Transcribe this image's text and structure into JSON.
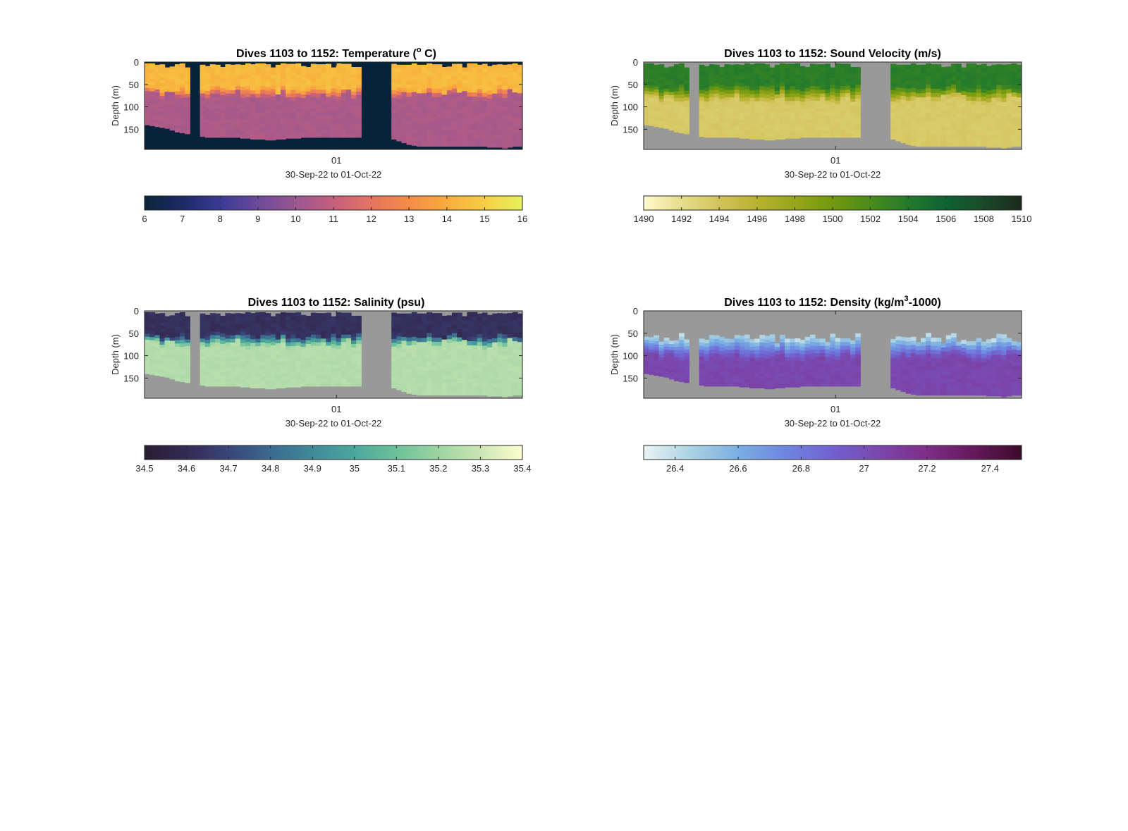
{
  "chart_data": [
    {
      "type": "heatmap",
      "title": "Dives 1103 to 1152: Temperature (",
      "title_sup": "o",
      "title_end": " C)",
      "ylabel": "Depth (m)",
      "ylim": [
        0,
        195
      ],
      "yticks": [
        "0",
        "50",
        "100",
        "150"
      ],
      "ytick_values": [
        0,
        50,
        100,
        150
      ],
      "xtick": "01",
      "xlabel": "30-Sep-22 to 01-Oct-22",
      "nan_color": "#06233a",
      "colorbar": {
        "ticks": [
          "6",
          "7",
          "8",
          "9",
          "10",
          "11",
          "12",
          "13",
          "14",
          "15",
          "16"
        ],
        "range": [
          6,
          16
        ],
        "colors": [
          "#0b2539",
          "#1c2a66",
          "#3b3b95",
          "#6b4a9a",
          "#9a5790",
          "#c4607d",
          "#e57361",
          "#f48c48",
          "#f9ab3d",
          "#f6ce45",
          "#e6f15b"
        ]
      },
      "fields": {
        "surface_value": 14.4,
        "surface_end": 60,
        "deep_value": 10.4,
        "deep_start": 75,
        "bottom": [
          140,
          142,
          144,
          146,
          148,
          152,
          156,
          158,
          160,
          162,
          164,
          166,
          168,
          168,
          168,
          168,
          168,
          168,
          168,
          170,
          170,
          172,
          172,
          172,
          174,
          174,
          172,
          172,
          170,
          170,
          170,
          168,
          168,
          168,
          168,
          168,
          168,
          168,
          168,
          168,
          168,
          168,
          168,
          168,
          168,
          168,
          168,
          168,
          170,
          172,
          176,
          180,
          184,
          186,
          188,
          188,
          188,
          188,
          188,
          188,
          188,
          188,
          188,
          188,
          188,
          188,
          188,
          188,
          190,
          190,
          190,
          192,
          190,
          188,
          188
        ],
        "gaps": [
          [
            9,
            10
          ],
          [
            43,
            48
          ]
        ]
      },
      "values_range": [
        7.2,
        15.1
      ]
    },
    {
      "type": "heatmap",
      "title": "Dives 1103 to 1152: Sound Velocity (m/s)",
      "ylabel": "Depth (m)",
      "ylim": [
        0,
        195
      ],
      "yticks": [
        "0",
        "50",
        "100",
        "150"
      ],
      "ytick_values": [
        0,
        50,
        100,
        150
      ],
      "xtick": "01",
      "xlabel": "30-Sep-22 to 01-Oct-22",
      "nan_color": "#999999",
      "colorbar": {
        "ticks": [
          "1490",
          "1492",
          "1494",
          "1496",
          "1498",
          "1500",
          "1502",
          "1504",
          "1506",
          "1508",
          "1510"
        ],
        "range": [
          1490,
          1510
        ],
        "colors": [
          "#fffacc",
          "#e6dc8c",
          "#d2c35a",
          "#b8b230",
          "#96a61a",
          "#73990f",
          "#4b8c1b",
          "#237a2c",
          "#0f6332",
          "#1a4a2b",
          "#1c2a1c"
        ]
      },
      "fields": {
        "surface_value": 1503.6,
        "surface_end": 55,
        "deep_value": 1493.5,
        "deep_start": 85,
        "bottom": [
          140,
          142,
          144,
          146,
          148,
          152,
          156,
          158,
          160,
          162,
          164,
          166,
          168,
          168,
          168,
          168,
          168,
          168,
          168,
          170,
          170,
          172,
          172,
          172,
          174,
          174,
          172,
          172,
          170,
          170,
          170,
          168,
          168,
          168,
          168,
          168,
          168,
          168,
          168,
          168,
          168,
          168,
          168,
          168,
          168,
          168,
          168,
          168,
          170,
          172,
          176,
          180,
          184,
          186,
          188,
          188,
          188,
          188,
          188,
          188,
          188,
          188,
          188,
          188,
          188,
          188,
          188,
          188,
          190,
          190,
          190,
          192,
          190,
          188,
          188
        ],
        "gaps": [
          [
            9,
            10
          ],
          [
            43,
            48
          ]
        ]
      },
      "values_range": [
        1492,
        1506
      ]
    },
    {
      "type": "heatmap",
      "title": "Dives 1103 to 1152: Salinity (psu)",
      "ylabel": "Depth (m)",
      "ylim": [
        0,
        195
      ],
      "yticks": [
        "0",
        "50",
        "100",
        "150"
      ],
      "ytick_values": [
        0,
        50,
        100,
        150
      ],
      "xtick": "01",
      "xlabel": "30-Sep-22 to 01-Oct-22",
      "nan_color": "#999999",
      "colorbar": {
        "ticks": [
          "34.5",
          "34.6",
          "34.7",
          "34.8",
          "34.9",
          "35",
          "35.1",
          "35.2",
          "35.3",
          "35.4"
        ],
        "range": [
          34.5,
          35.4
        ],
        "colors": [
          "#281d31",
          "#342b55",
          "#394579",
          "#3b6a8f",
          "#3f8a99",
          "#4aa79c",
          "#6cc19a",
          "#9cd4a1",
          "#cae5b4",
          "#fdfece"
        ]
      },
      "fields": {
        "surface_value": 34.62,
        "surface_end": 55,
        "deep_value": 35.25,
        "deep_start": 75,
        "bottom": [
          140,
          142,
          144,
          146,
          148,
          152,
          156,
          158,
          160,
          162,
          164,
          166,
          168,
          168,
          168,
          168,
          168,
          168,
          168,
          170,
          170,
          172,
          172,
          172,
          174,
          174,
          172,
          172,
          170,
          170,
          170,
          168,
          168,
          168,
          168,
          168,
          168,
          168,
          168,
          168,
          168,
          168,
          168,
          168,
          168,
          168,
          168,
          168,
          170,
          172,
          176,
          180,
          184,
          186,
          188,
          188,
          188,
          188,
          188,
          188,
          188,
          188,
          188,
          188,
          188,
          188,
          188,
          188,
          190,
          190,
          190,
          192,
          190,
          188,
          188
        ],
        "gaps": [
          [
            9,
            10
          ],
          [
            43,
            48
          ]
        ]
      },
      "values_range": [
        34.55,
        35.3
      ]
    },
    {
      "type": "heatmap",
      "title": "Dives 1103 to 1152: Density (kg/m",
      "title_sup": "3",
      "title_end": "-1000)",
      "ylabel": "Depth (m)",
      "ylim": [
        0,
        195
      ],
      "yticks": [
        "0",
        "50",
        "100",
        "150"
      ],
      "ytick_values": [
        0,
        50,
        100,
        150
      ],
      "xtick": "01",
      "xlabel": "30-Sep-22 to 01-Oct-22",
      "nan_color": "#999999",
      "colorbar": {
        "ticks": [
          "26.4",
          "26.6",
          "26.8",
          "27",
          "27.2",
          "27.4"
        ],
        "range": [
          26.3,
          27.5
        ],
        "colors": [
          "#e9f3f4",
          "#aad1e2",
          "#7aaee3",
          "#6f85e0",
          "#7161cf",
          "#7a47ad",
          "#7d2e88",
          "#65195b",
          "#3c0b2a"
        ]
      },
      "fields": {
        "surface_value": null,
        "surface_end": 60,
        "deep_value": 27.05,
        "deep_start": 95,
        "bottom": [
          140,
          142,
          144,
          146,
          148,
          152,
          156,
          158,
          160,
          162,
          164,
          166,
          168,
          168,
          168,
          168,
          168,
          168,
          168,
          170,
          170,
          172,
          172,
          172,
          174,
          174,
          172,
          172,
          170,
          170,
          170,
          168,
          168,
          168,
          168,
          168,
          168,
          168,
          168,
          168,
          168,
          168,
          168,
          168,
          168,
          168,
          168,
          168,
          170,
          172,
          176,
          180,
          184,
          186,
          188,
          188,
          188,
          188,
          188,
          188,
          188,
          188,
          188,
          188,
          188,
          188,
          188,
          188,
          190,
          190,
          190,
          192,
          190,
          188,
          188
        ],
        "gaps": [
          [
            9,
            10
          ],
          [
            43,
            48
          ]
        ]
      },
      "values_range": [
        26.4,
        27.1
      ]
    }
  ]
}
